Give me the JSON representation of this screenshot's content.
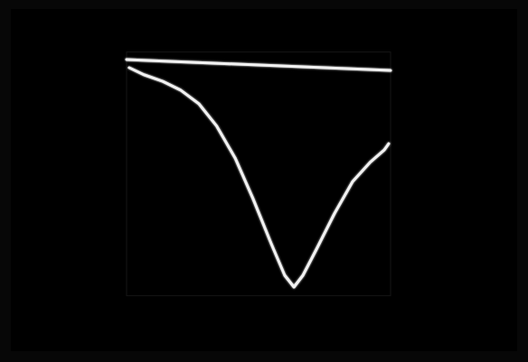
{
  "chart_data": {
    "type": "line",
    "tick_labels": false,
    "grid": false,
    "xlim": [
      0,
      100
    ],
    "ylim": [
      -100,
      4
    ],
    "series": [
      {
        "color": "#f2f2f2",
        "x": [
          0,
          100
        ],
        "values": [
          0.8,
          -3.9
        ]
      },
      {
        "color": "#f2f2f2",
        "x": [
          1.0,
          6.8,
          13.7,
          20.5,
          27.4,
          34.2,
          41.1,
          47.9,
          54.8,
          59.9,
          63.4,
          66.8,
          71.9,
          78.8,
          85.6,
          92.5,
          97.6,
          99.3
        ],
        "values": [
          -2.7,
          -5.8,
          -8.5,
          -12.3,
          -18.1,
          -27.7,
          -41.2,
          -58.6,
          -77.8,
          -91.3,
          -96.3,
          -91.3,
          -80.2,
          -64.8,
          -51.3,
          -42.8,
          -37.8,
          -35.1
        ]
      }
    ]
  }
}
